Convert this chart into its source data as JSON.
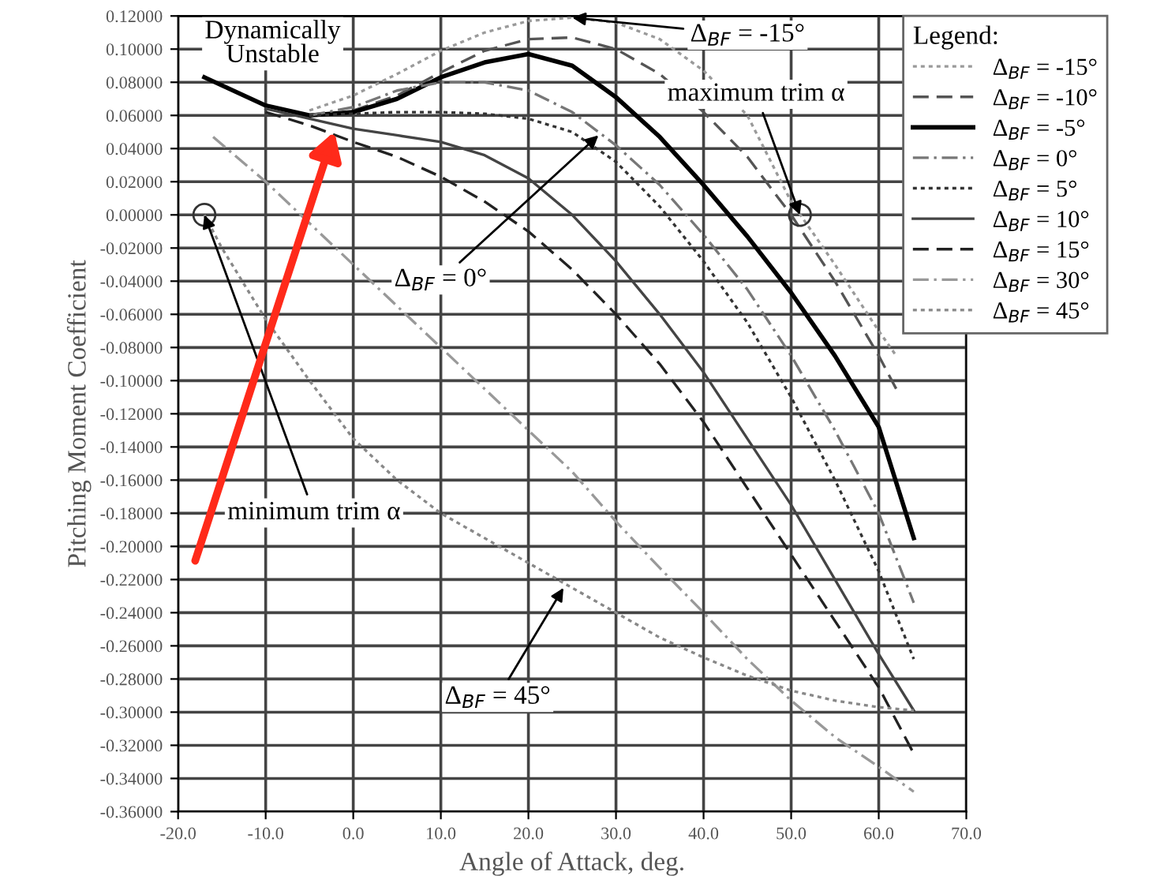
{
  "chart_data": {
    "type": "line",
    "xlabel": "Angle of Attack, deg.",
    "ylabel": "Pitching Moment Coefficient",
    "legend_title": "Legend:",
    "legend": "top right",
    "grid": true,
    "marker": "none",
    "xlim": [
      -20,
      70
    ],
    "ylim": [
      -0.36,
      0.12
    ],
    "xticks": [
      {
        "value": -20,
        "label": "-20.0"
      },
      {
        "value": -10,
        "label": "-10.0"
      },
      {
        "value": 0,
        "label": "0.0"
      },
      {
        "value": 10,
        "label": "10.0"
      },
      {
        "value": 20,
        "label": "20.0"
      },
      {
        "value": 30,
        "label": "30.0"
      },
      {
        "value": 40,
        "label": "40.0"
      },
      {
        "value": 50,
        "label": "50.0"
      },
      {
        "value": 60,
        "label": "60.0"
      },
      {
        "value": 70,
        "label": "70.0"
      }
    ],
    "yticks": [
      {
        "value": 0.12,
        "label": "0.12000"
      },
      {
        "value": 0.1,
        "label": "0.10000"
      },
      {
        "value": 0.08,
        "label": "0.08000"
      },
      {
        "value": 0.06,
        "label": "0.06000"
      },
      {
        "value": 0.04,
        "label": "0.04000"
      },
      {
        "value": 0.02,
        "label": "0.02000"
      },
      {
        "value": 0,
        "label": "0.00000"
      },
      {
        "value": -0.02,
        "label": "-0.02000"
      },
      {
        "value": -0.04,
        "label": "-0.04000"
      },
      {
        "value": -0.06,
        "label": "-0.06000"
      },
      {
        "value": -0.08,
        "label": "-0.08000"
      },
      {
        "value": -0.1,
        "label": "-0.10000"
      },
      {
        "value": -0.12,
        "label": "-0.12000"
      },
      {
        "value": -0.14,
        "label": "-0.14000"
      },
      {
        "value": -0.16,
        "label": "-0.16000"
      },
      {
        "value": -0.18,
        "label": "-0.18000"
      },
      {
        "value": -0.2,
        "label": "-0.20000"
      },
      {
        "value": -0.22,
        "label": "-0.22000"
      },
      {
        "value": -0.24,
        "label": "-0.24000"
      },
      {
        "value": -0.26,
        "label": "-0.26000"
      },
      {
        "value": -0.28,
        "label": "-0.28000"
      },
      {
        "value": -0.3,
        "label": "-0.30000"
      },
      {
        "value": -0.32,
        "label": "-0.32000"
      },
      {
        "value": -0.34,
        "label": "-0.34000"
      },
      {
        "value": -0.36,
        "label": "-0.36000"
      }
    ],
    "series": [
      {
        "name": "Δ$_{BF}$ = -15°",
        "color": "#9a9a9a",
        "line_style": "dotted",
        "x": [
          -5,
          0,
          5,
          10,
          15,
          20,
          25,
          30,
          35,
          40,
          45,
          50,
          55,
          60,
          62
        ],
        "values": [
          0.063,
          0.072,
          0.085,
          0.099,
          0.11,
          0.117,
          0.119,
          0.116,
          0.106,
          0.087,
          0.06,
          0.008,
          -0.03,
          -0.07,
          -0.085
        ]
      },
      {
        "name": "Δ$_{BF}$ = -10°",
        "color": "#555555",
        "line_style": "dashed",
        "x": [
          0,
          5,
          10,
          15,
          20,
          25,
          30,
          35,
          40,
          45,
          50,
          55,
          60,
          62
        ],
        "values": [
          0.063,
          0.072,
          0.086,
          0.099,
          0.106,
          0.107,
          0.1,
          0.085,
          0.062,
          0.035,
          0.0,
          -0.04,
          -0.085,
          -0.105
        ]
      },
      {
        "name": "Δ$_{BF}$ = -5°",
        "color": "#000000",
        "line_style": "solid",
        "x": [
          -17,
          -10,
          -5,
          0,
          5,
          10,
          15,
          20,
          25,
          30,
          35,
          40,
          45,
          50,
          55,
          60,
          64
        ],
        "values": [
          0.083,
          0.066,
          0.06,
          0.062,
          0.07,
          0.083,
          0.092,
          0.097,
          0.09,
          0.071,
          0.047,
          0.018,
          -0.013,
          -0.047,
          -0.085,
          -0.128,
          -0.195
        ]
      },
      {
        "name": "Δ$_{BF}$ = 0°",
        "color": "#777777",
        "line_style": "dashdot",
        "x": [
          -5,
          0,
          5,
          10,
          15,
          20,
          25,
          30,
          35,
          40,
          45,
          50,
          55,
          60,
          64
        ],
        "values": [
          0.06,
          0.065,
          0.075,
          0.08,
          0.08,
          0.075,
          0.062,
          0.042,
          0.018,
          -0.012,
          -0.045,
          -0.085,
          -0.13,
          -0.18,
          -0.234
        ]
      },
      {
        "name": "Δ$_{BF}$ = 5°",
        "color": "#333333",
        "line_style": "dotted",
        "x": [
          -5,
          0,
          5,
          10,
          15,
          20,
          25,
          30,
          35,
          40,
          45,
          50,
          55,
          60,
          64
        ],
        "values": [
          0.06,
          0.061,
          0.062,
          0.062,
          0.061,
          0.058,
          0.05,
          0.032,
          0.005,
          -0.028,
          -0.065,
          -0.11,
          -0.16,
          -0.215,
          -0.268
        ]
      },
      {
        "name": "Δ$_{BF}$ = 10°",
        "color": "#444444",
        "line_style": "solid",
        "x": [
          -10,
          -5,
          0,
          5,
          10,
          15,
          20,
          25,
          30,
          35,
          40,
          45,
          50,
          55,
          60,
          64
        ],
        "values": [
          0.064,
          0.058,
          0.052,
          0.048,
          0.044,
          0.036,
          0.022,
          0.0,
          -0.028,
          -0.06,
          -0.095,
          -0.135,
          -0.175,
          -0.22,
          -0.265,
          -0.299
        ]
      },
      {
        "name": "Δ$_{BF}$ = 15°",
        "color": "#222222",
        "line_style": "dashed",
        "x": [
          -10,
          -5,
          0,
          5,
          10,
          15,
          20,
          25,
          30,
          35,
          40,
          45,
          50,
          55,
          60,
          64
        ],
        "values": [
          0.062,
          0.054,
          0.044,
          0.035,
          0.023,
          0.008,
          -0.01,
          -0.033,
          -0.06,
          -0.09,
          -0.125,
          -0.165,
          -0.205,
          -0.245,
          -0.285,
          -0.325
        ]
      },
      {
        "name": "Δ$_{BF}$ = 30°",
        "color": "#999999",
        "line_style": "dashdot",
        "x": [
          -16,
          -10,
          -5,
          0,
          5,
          10,
          15,
          20,
          25,
          30,
          35,
          40,
          45,
          50,
          55,
          60,
          64
        ],
        "values": [
          0.047,
          0.02,
          -0.005,
          -0.03,
          -0.055,
          -0.08,
          -0.105,
          -0.13,
          -0.155,
          -0.185,
          -0.213,
          -0.24,
          -0.268,
          -0.293,
          -0.315,
          -0.333,
          -0.348
        ]
      },
      {
        "name": "Δ$_{BF}$ = 45°",
        "color": "#888888",
        "line_style": "dotted",
        "x": [
          -17,
          -15,
          -10,
          -5,
          0,
          5,
          10,
          15,
          20,
          25,
          30,
          35,
          40,
          45,
          50,
          55,
          60,
          64
        ],
        "values": [
          0.0,
          -0.02,
          -0.063,
          -0.1,
          -0.135,
          -0.16,
          -0.18,
          -0.195,
          -0.21,
          -0.225,
          -0.24,
          -0.255,
          -0.267,
          -0.278,
          -0.287,
          -0.293,
          -0.297,
          -0.299
        ]
      }
    ],
    "annotations": [
      "Dynamically\nUnstable",
      {
        "text": "Δ$_{BF}$ = -15°",
        "x": 25,
        "y": 0.119
      },
      {
        "text": "maximum trim α",
        "x": 51,
        "y": 0.0
      },
      {
        "text": "Δ$_{BF}$ = 0°",
        "x": 28,
        "y": 0.048
      },
      {
        "text": "minimum trim α",
        "x": -17,
        "y": 0.0
      },
      {
        "text": "Δ$_{BF}$ = 45°",
        "x": 24,
        "y": -0.225
      }
    ]
  }
}
